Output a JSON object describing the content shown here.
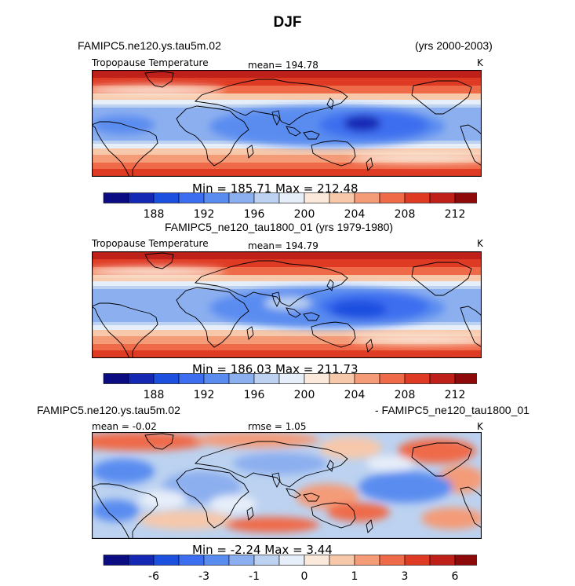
{
  "title": "DJF",
  "units": "K",
  "colors": {
    "scale": [
      "#0c0c82",
      "#1428b4",
      "#1e50e0",
      "#3c6eef",
      "#5a8cf0",
      "#8cafef",
      "#bcd2f0",
      "#e6eef9",
      "#fbe9dc",
      "#f7c8aa",
      "#f49b78",
      "#ef6a48",
      "#df3b24",
      "#c0201a",
      "#8e0a0a"
    ],
    "coast": "#000000",
    "border": "#000000"
  },
  "panel1": {
    "case_left": "FAMIPC5.ne120.ys.tau5m.02",
    "case_right": "(yrs 2000-2003)",
    "varname": "Tropopause Temperature",
    "mean_text": "mean= 194.78",
    "units": "K",
    "minmax": "Min = 185.71 Max = 212.48"
  },
  "panel2": {
    "case_center": "FAMIPC5_ne120_tau1800_01 (yrs 1979-1980)",
    "varname": "Tropopause Temperature",
    "mean_text": "mean= 194.79",
    "units": "K",
    "minmax": "Min = 186.03 Max = 211.73"
  },
  "panel3": {
    "case_left": "FAMIPC5.ne120.ys.tau5m.02",
    "case_right": "- FAMIPC5_ne120_tau1800_01",
    "mean_text": "mean =  -0.02",
    "rmse_text": "rmse =   1.05",
    "units": "K",
    "minmax": "Min =  -2.24 Max =   3.44"
  },
  "chart_data": [
    {
      "type": "heatmap",
      "title": "Tropopause Temperature",
      "subtitle": "FAMIPC5.ne120.ys.tau5m.02 (yrs 2000-2003)",
      "units": "K",
      "mean": 194.78,
      "min": 185.71,
      "max": 212.48,
      "contour_levels": [
        186,
        188,
        190,
        192,
        194,
        196,
        198,
        200,
        202,
        204,
        206,
        208,
        210,
        212
      ],
      "colorbar_tick_labels": [
        "188",
        "192",
        "196",
        "200",
        "204",
        "208",
        "212"
      ],
      "x_range": [
        0,
        360
      ],
      "y_range": [
        -90,
        90
      ]
    },
    {
      "type": "heatmap",
      "title": "Tropopause Temperature",
      "subtitle": "FAMIPC5_ne120_tau1800_01 (yrs 1979-1980)",
      "units": "K",
      "mean": 194.79,
      "min": 186.03,
      "max": 211.73,
      "contour_levels": [
        186,
        188,
        190,
        192,
        194,
        196,
        198,
        200,
        202,
        204,
        206,
        208,
        210,
        212
      ],
      "colorbar_tick_labels": [
        "188",
        "192",
        "196",
        "200",
        "204",
        "208",
        "212"
      ],
      "x_range": [
        0,
        360
      ],
      "y_range": [
        -90,
        90
      ]
    },
    {
      "type": "heatmap",
      "title": "FAMIPC5.ne120.ys.tau5m.02 - FAMIPC5_ne120_tau1800_01",
      "units": "K",
      "mean": -0.02,
      "rmse": 1.05,
      "min": -2.24,
      "max": 3.44,
      "contour_levels": [
        -8,
        -6,
        -4,
        -3,
        -2,
        -1,
        -0.5,
        0,
        0.5,
        1,
        2,
        3,
        4,
        6,
        8
      ],
      "colorbar_tick_labels": [
        "-6",
        "-3",
        "-1",
        "0",
        "1",
        "3",
        "6"
      ],
      "x_range": [
        0,
        360
      ],
      "y_range": [
        -90,
        90
      ]
    }
  ]
}
